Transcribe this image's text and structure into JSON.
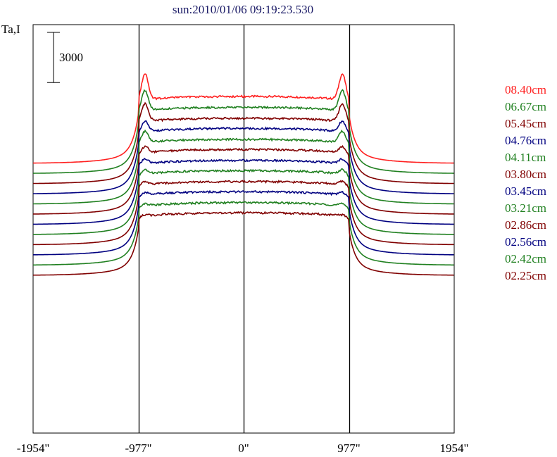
{
  "chart_data": {
    "type": "line",
    "title": "sun:2010/01/06 09:19:23.530",
    "ylabel": "Ta,I",
    "scale_bar_label": "3000",
    "xlim": [
      -1954,
      1954
    ],
    "x_ticks": [
      {
        "value": -1954,
        "label": "-1954\""
      },
      {
        "value": -977,
        "label": "-977\""
      },
      {
        "value": 0,
        "label": "0\""
      },
      {
        "value": 977,
        "label": "977\""
      },
      {
        "value": 1954,
        "label": "1954\""
      }
    ],
    "vertical_lines": [
      -977,
      0,
      977
    ],
    "scale_bar_value": 3000,
    "series": [
      {
        "name": "08.40cm",
        "color": "#ff2020",
        "baseline": 0,
        "disk_height": 9200,
        "limb_peak": 3600
      },
      {
        "name": "06.67cm",
        "color": "#208020",
        "baseline": -1400,
        "disk_height": 9100,
        "limb_peak": 2800
      },
      {
        "name": "05.45cm",
        "color": "#800000",
        "baseline": -2800,
        "disk_height": 9000,
        "limb_peak": 2500
      },
      {
        "name": "04.76cm",
        "color": "#000080",
        "baseline": -4200,
        "disk_height": 9000,
        "limb_peak": 1500
      },
      {
        "name": "04.11cm",
        "color": "#208020",
        "baseline": -5600,
        "disk_height": 8900,
        "limb_peak": 1600
      },
      {
        "name": "03.80cm",
        "color": "#800000",
        "baseline": -7000,
        "disk_height": 8900,
        "limb_peak": 900
      },
      {
        "name": "03.45cm",
        "color": "#000080",
        "baseline": -8400,
        "disk_height": 8800,
        "limb_peak": 700
      },
      {
        "name": "03.21cm",
        "color": "#208020",
        "baseline": -9800,
        "disk_height": 8800,
        "limb_peak": 600
      },
      {
        "name": "02.86cm",
        "color": "#800000",
        "baseline": -11200,
        "disk_height": 8700,
        "limb_peak": 500
      },
      {
        "name": "02.56cm",
        "color": "#000080",
        "baseline": -12600,
        "disk_height": 8700,
        "limb_peak": 400
      },
      {
        "name": "02.42cm",
        "color": "#208020",
        "baseline": -14000,
        "disk_height": 8600,
        "limb_peak": 300
      },
      {
        "name": "02.25cm",
        "color": "#800000",
        "baseline": -15400,
        "disk_height": 8600,
        "limb_peak": 200
      }
    ],
    "legend_position": "right",
    "grid": false
  }
}
